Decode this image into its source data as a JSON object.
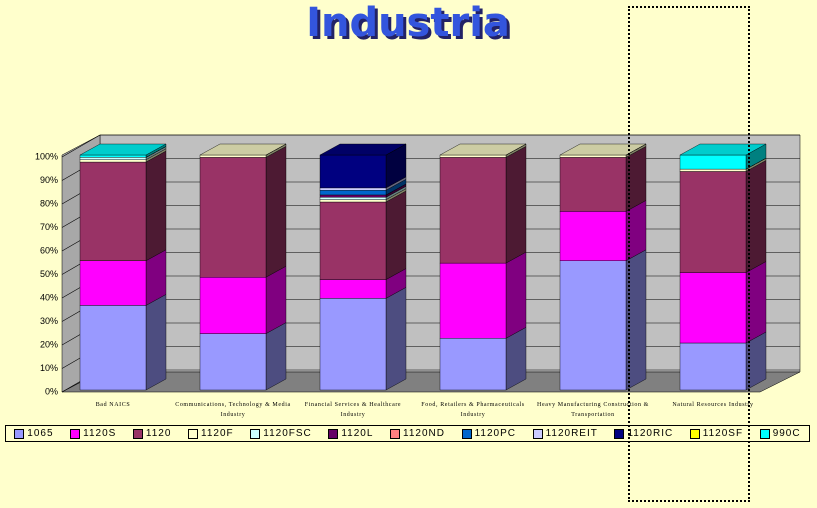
{
  "chart_data": {
    "type": "bar",
    "stacked": true,
    "title": "Industria",
    "categories": [
      "Bad NAICS",
      "Communications, Technology & Media Industry",
      "Financial Services & Healthcare Industry",
      "Food, Retailers & Pharmaceuticals Industry",
      "Heavy Manufacturing Construction & Transportation",
      "Natural Resources Industry"
    ],
    "series": [
      {
        "name": "1065",
        "color": "#9999ff",
        "values": [
          36,
          24,
          39,
          22,
          55,
          20
        ]
      },
      {
        "name": "1120S",
        "color": "#ff00ff",
        "values": [
          19,
          24,
          8,
          32,
          21,
          30
        ]
      },
      {
        "name": "1120",
        "color": "#993366",
        "values": [
          42,
          51,
          33,
          45,
          23,
          43
        ]
      },
      {
        "name": "1120F",
        "color": "#ffffcc",
        "values": [
          1,
          1,
          1,
          1,
          1,
          1
        ]
      },
      {
        "name": "1120FSC",
        "color": "#ccffff",
        "values": [
          1,
          0,
          1,
          0,
          0,
          0
        ]
      },
      {
        "name": "1120L",
        "color": "#660066",
        "values": [
          0,
          0,
          1,
          0,
          0,
          0
        ]
      },
      {
        "name": "1120ND",
        "color": "#ff8080",
        "values": [
          0,
          0,
          0,
          0,
          0,
          0
        ]
      },
      {
        "name": "1120PC",
        "color": "#0066cc",
        "values": [
          0,
          0,
          2,
          0,
          0,
          0
        ]
      },
      {
        "name": "1120REIT",
        "color": "#ccccff",
        "values": [
          0,
          0,
          1,
          0,
          0,
          0
        ]
      },
      {
        "name": "1120RIC",
        "color": "#000080",
        "values": [
          0,
          0,
          14,
          0,
          0,
          0
        ]
      },
      {
        "name": "1120SF",
        "color": "#ffff00",
        "values": [
          0,
          0,
          0,
          0,
          0,
          0
        ]
      },
      {
        "name": "990C",
        "color": "#00ffff",
        "values": [
          1,
          0,
          0,
          0,
          0,
          6
        ]
      }
    ],
    "ylim": [
      0,
      100
    ],
    "yticks": [
      {
        "value": 0,
        "label": "0%"
      },
      {
        "value": 10,
        "label": "10%"
      },
      {
        "value": 20,
        "label": "20%"
      },
      {
        "value": 30,
        "label": "30%"
      },
      {
        "value": 40,
        "label": "40%"
      },
      {
        "value": 50,
        "label": "50%"
      },
      {
        "value": 60,
        "label": "60%"
      },
      {
        "value": 70,
        "label": "70%"
      },
      {
        "value": 80,
        "label": "80%"
      },
      {
        "value": 90,
        "label": "90%"
      },
      {
        "value": 100,
        "label": "100%"
      }
    ],
    "grid": true,
    "legend": "bottom"
  }
}
